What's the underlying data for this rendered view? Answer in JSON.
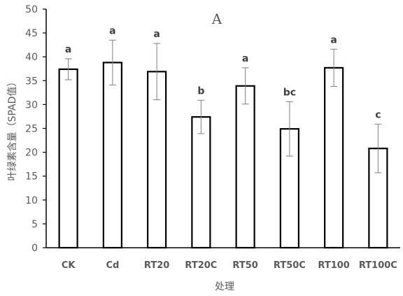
{
  "chart_data": {
    "type": "bar",
    "panel_label": "A",
    "xlabel": "处理",
    "ylabel": "叶绿素含量（SPAD值）",
    "ylim": [
      0,
      50
    ],
    "yticks": [
      0,
      5,
      10,
      15,
      20,
      25,
      30,
      35,
      40,
      45,
      50
    ],
    "categories": [
      "CK",
      "Cd",
      "RT20",
      "RT20C",
      "RT50",
      "RT50C",
      "RT100",
      "RT100C"
    ],
    "values": [
      37.4,
      38.8,
      36.9,
      27.4,
      33.9,
      24.9,
      37.7,
      20.8
    ],
    "error_low": [
      35.2,
      34.1,
      31.0,
      23.9,
      30.1,
      19.2,
      33.8,
      15.7
    ],
    "error_high": [
      39.6,
      43.5,
      42.8,
      30.9,
      37.7,
      30.6,
      41.6,
      25.9
    ],
    "significance": [
      "a",
      "a",
      "a",
      "b",
      "a",
      "bc",
      "a",
      "c"
    ],
    "bar_fill": "#ffffff",
    "bar_stroke": "#000000",
    "axis_color": "#000000",
    "error_color": "#7f7f7f"
  }
}
